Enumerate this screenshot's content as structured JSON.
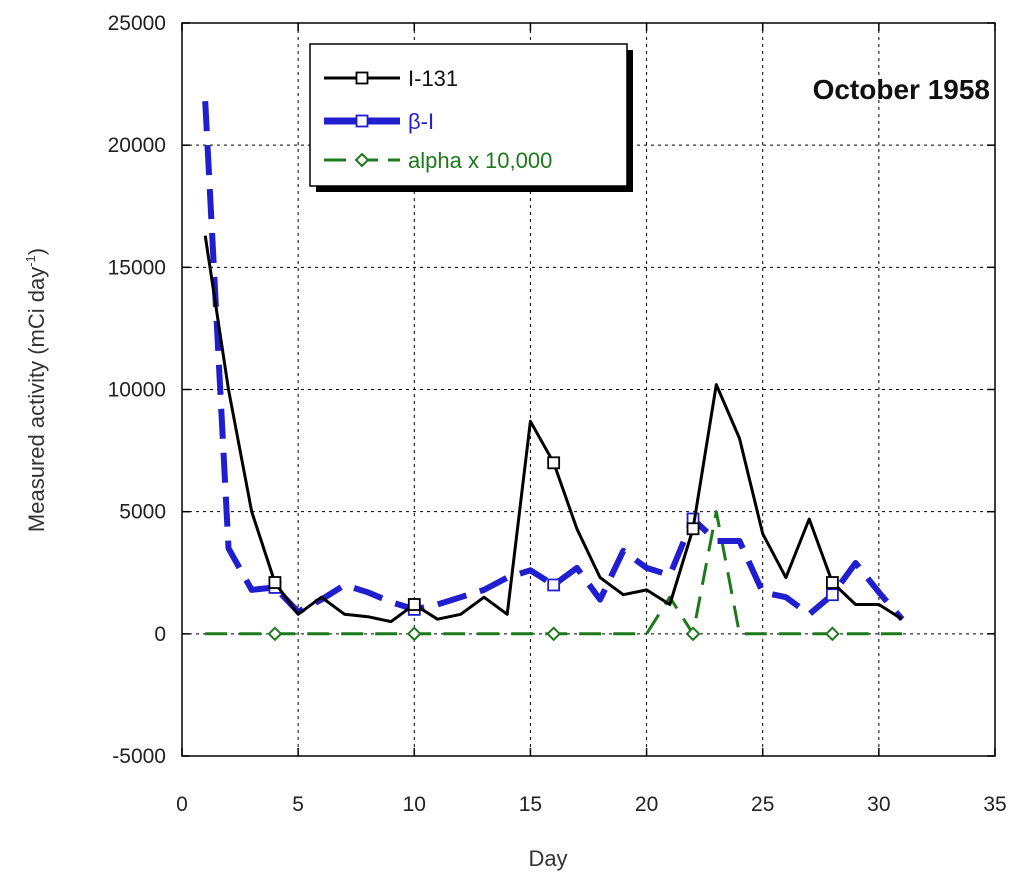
{
  "chart_data": {
    "type": "line",
    "annotation": "October 1958",
    "xlabel": "Day",
    "ylabel_main": "Measured activity (mCi day",
    "ylabel_sup": "-1",
    "ylabel_close": ")",
    "xlim": [
      0,
      35
    ],
    "ylim": [
      -5000,
      25000
    ],
    "x_ticks": [
      0,
      5,
      10,
      15,
      20,
      25,
      30,
      35
    ],
    "y_ticks": [
      -5000,
      0,
      5000,
      10000,
      15000,
      20000,
      25000
    ],
    "x_tick_labels": [
      "0",
      "5",
      "10",
      "15",
      "20",
      "25",
      "30",
      "35"
    ],
    "y_tick_labels": [
      "-5000",
      "0",
      "5000",
      "10000",
      "15000",
      "20000",
      "25000"
    ],
    "grid": true,
    "legend_position": "top-left",
    "series": [
      {
        "name": "I-131",
        "color": "#000000",
        "style": "solid",
        "marker": "open-square",
        "marker_every": 6,
        "x": [
          1,
          2,
          3,
          4,
          5,
          6,
          7,
          8,
          9,
          10,
          11,
          12,
          13,
          14,
          15,
          16,
          17,
          18,
          19,
          20,
          21,
          22,
          23,
          24,
          25,
          26,
          27,
          28,
          29,
          30,
          31
        ],
        "y": [
          16300,
          10000,
          5000,
          2100,
          800,
          1500,
          800,
          700,
          500,
          1200,
          600,
          800,
          1500,
          800,
          8700,
          7000,
          4300,
          2300,
          1600,
          1800,
          1200,
          4300,
          10200,
          8000,
          4100,
          2300,
          4700,
          2100,
          1200,
          1200,
          600
        ]
      },
      {
        "name": "β-I",
        "color": "#1f1fcf",
        "style": "dashed",
        "marker": "open-square",
        "marker_every": 6,
        "x": [
          1,
          2,
          3,
          4,
          5,
          6,
          7,
          8,
          9,
          10,
          11,
          12,
          13,
          14,
          15,
          16,
          17,
          18,
          19,
          20,
          21,
          22,
          23,
          24,
          25,
          26,
          27,
          28,
          29,
          30,
          31
        ],
        "y": [
          21800,
          3500,
          1800,
          1900,
          900,
          1400,
          2000,
          1700,
          1300,
          1000,
          1200,
          1500,
          1800,
          2300,
          2600,
          2000,
          2700,
          1400,
          3400,
          2700,
          2400,
          4700,
          3800,
          3800,
          1700,
          1500,
          800,
          1600,
          2900,
          1700,
          600
        ]
      },
      {
        "name": "alpha x 10,000",
        "color": "#1c7a1c",
        "style": "dashed",
        "marker": "open-diamond",
        "marker_every": 6,
        "x": [
          1,
          2,
          3,
          4,
          5,
          6,
          7,
          8,
          9,
          10,
          11,
          12,
          13,
          14,
          15,
          16,
          17,
          18,
          19,
          20,
          21,
          22,
          23,
          24,
          25,
          26,
          27,
          28,
          29,
          30,
          31
        ],
        "y": [
          0,
          0,
          0,
          0,
          0,
          0,
          0,
          0,
          0,
          0,
          0,
          0,
          0,
          0,
          0,
          0,
          0,
          0,
          0,
          0,
          1500,
          0,
          5000,
          0,
          0,
          0,
          0,
          0,
          0,
          0,
          0
        ]
      }
    ]
  }
}
